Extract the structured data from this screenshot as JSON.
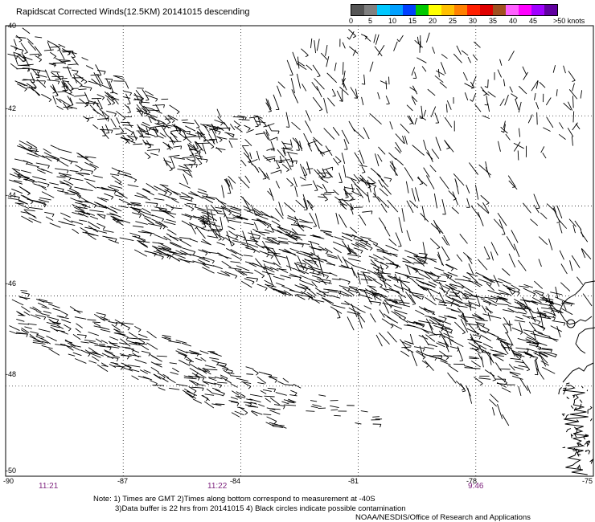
{
  "title": "Rapidscat Corrected Winds(12.5KM) 20141015 descending",
  "legend": {
    "colors": [
      "#555555",
      "#808080",
      "#00c8ff",
      "#00a0ff",
      "#0040ff",
      "#00c800",
      "#ffff00",
      "#ffc000",
      "#ff8000",
      "#ff2000",
      "#e00000",
      "#a05020",
      "#ff60ff",
      "#ff00ff",
      "#a000ff",
      "#6000a0"
    ],
    "labels": [
      "0",
      "5",
      "10",
      "15",
      "20",
      "25",
      "30",
      "35",
      "40",
      "45",
      ">50 knots"
    ]
  },
  "axes": {
    "lat_labels": [
      "-40",
      "-42",
      "-44",
      "-46",
      "-48",
      "-50"
    ],
    "lon_labels": [
      "-90",
      "-87",
      "-84",
      "-81",
      "-78",
      "-75"
    ]
  },
  "times": [
    "11:21",
    "11:22",
    "9:46"
  ],
  "note_lines": [
    "Note: 1) Times are GMT 2)Times along bottom correspond to measurement at -40S",
    "3)Data buffer is 22 hrs from 20141015 4) Black circles indicate possible contamination"
  ],
  "credit": "NOAA/NESDIS/Office of Research and Applications",
  "map": {
    "lon_range": [
      -90,
      -75
    ],
    "lat_range": [
      -50,
      -40
    ],
    "wind_color": "#000000",
    "grid_color": "#000000"
  }
}
